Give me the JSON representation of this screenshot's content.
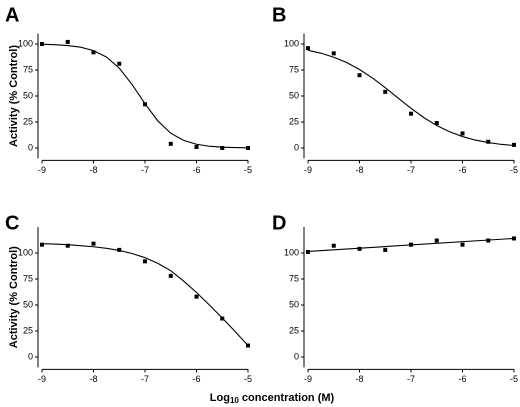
{
  "chart_data": [
    {
      "type": "scatter",
      "label": "A",
      "ylabel": "Activity (% Control)",
      "points": {
        "x": [
          -9,
          -8.5,
          -8,
          -7.5,
          -7,
          -6.5,
          -6,
          -5.5,
          -5
        ],
        "values": [
          100,
          102,
          92,
          81,
          42,
          4,
          1,
          0,
          0
        ]
      },
      "fit": {
        "x": [
          -9,
          -8.75,
          -8.5,
          -8.25,
          -8,
          -7.75,
          -7.5,
          -7.25,
          -7,
          -6.75,
          -6.5,
          -6.25,
          -6,
          -5.75,
          -5.5,
          -5.25,
          -5
        ],
        "values": [
          99.7,
          99.3,
          98.5,
          96.9,
          93.6,
          87.5,
          76.8,
          61,
          42.6,
          26,
          14.2,
          7.3,
          3.6,
          1.7,
          0.8,
          0.4,
          0.2
        ]
      },
      "xlim": [
        -9,
        -5
      ],
      "xticks": [
        -9,
        -8,
        -7,
        -6,
        -5
      ],
      "ylim": [
        -10,
        110
      ],
      "yticks": [
        0,
        25,
        50,
        75,
        100
      ],
      "color": "#000000"
    },
    {
      "type": "scatter",
      "label": "B",
      "points": {
        "x": [
          -9,
          -8.5,
          -8,
          -7.5,
          -7,
          -6.5,
          -6,
          -5.5,
          -5
        ],
        "values": [
          96,
          91,
          70,
          54,
          33,
          24,
          14,
          6,
          3
        ]
      },
      "fit": {
        "x": [
          -9,
          -8.75,
          -8.5,
          -8.25,
          -8,
          -7.75,
          -7.5,
          -7.25,
          -7,
          -6.75,
          -6.5,
          -6.25,
          -6,
          -5.75,
          -5.5,
          -5.25,
          -5
        ],
        "values": [
          93.9,
          91.2,
          87.3,
          82.2,
          75.5,
          67.4,
          58,
          48,
          38.2,
          29.2,
          21.6,
          15.6,
          11,
          7.6,
          5.2,
          3.5,
          2.4
        ]
      },
      "xlim": [
        -9,
        -5
      ],
      "xticks": [
        -9,
        -8,
        -7,
        -6,
        -5
      ],
      "ylim": [
        -10,
        110
      ],
      "yticks": [
        0,
        25,
        50,
        75,
        100
      ],
      "color": "#000000"
    },
    {
      "type": "scatter",
      "label": "C",
      "ylabel": "Activity (% Control)",
      "points": {
        "x": [
          -9,
          -8.5,
          -8,
          -7.5,
          -7,
          -6.5,
          -6,
          -5.5,
          -5
        ],
        "values": [
          108,
          107,
          109,
          103,
          92,
          78,
          58,
          37,
          11
        ]
      },
      "fit": {
        "x": [
          -9,
          -8.75,
          -8.5,
          -8.25,
          -8,
          -7.75,
          -7.5,
          -7.25,
          -7,
          -6.75,
          -6.5,
          -6.25,
          -6,
          -5.75,
          -5.5,
          -5.25,
          -5
        ],
        "values": [
          109,
          108.6,
          108,
          107,
          106,
          104.5,
          102.5,
          99.5,
          95.5,
          90,
          83,
          73,
          62,
          50,
          37.5,
          24.5,
          11
        ]
      },
      "xlim": [
        -9,
        -5
      ],
      "xticks": [
        -9,
        -8,
        -7,
        -6,
        -5
      ],
      "ylim": [
        -10,
        125
      ],
      "yticks": [
        0,
        25,
        50,
        75,
        100
      ],
      "color": "#000000"
    },
    {
      "type": "scatter",
      "label": "D",
      "points": {
        "x": [
          -9,
          -8.5,
          -8,
          -7.5,
          -7,
          -6.5,
          -6,
          -5.5,
          -5
        ],
        "values": [
          101,
          107,
          104,
          103,
          108,
          112,
          108,
          112,
          114
        ]
      },
      "fit": {
        "x": [
          -9,
          -5
        ],
        "values": [
          101.5,
          114
        ]
      },
      "xlim": [
        -9,
        -5
      ],
      "xticks": [
        -9,
        -8,
        -7,
        -6,
        -5
      ],
      "ylim": [
        -10,
        125
      ],
      "yticks": [
        0,
        25,
        50,
        75,
        100
      ],
      "color": "#000000"
    }
  ],
  "xlabel": {
    "base": "Log",
    "sub": "10",
    "rest": " concentration (M)"
  }
}
